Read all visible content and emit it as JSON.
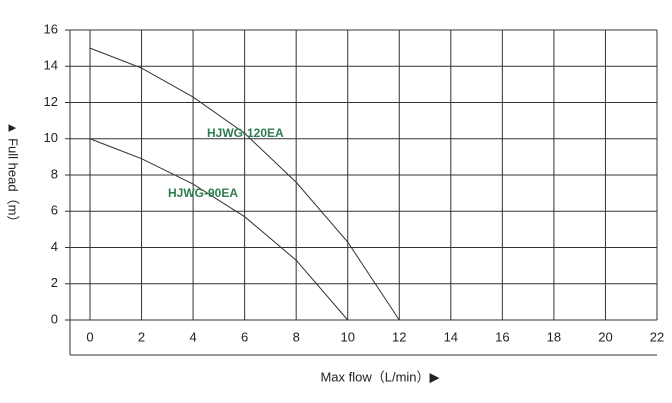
{
  "chart_data": {
    "type": "line",
    "x_label": "Max flow（L/min）▶",
    "y_label": "▲ Full head（m）",
    "x": [
      0,
      2,
      4,
      6,
      8,
      10,
      12
    ],
    "series": [
      {
        "name": "HJWG-120EA",
        "color": "#333333",
        "values": [
          15,
          13.9,
          12.3,
          10.3,
          7.6,
          4.3,
          0
        ]
      },
      {
        "name": "HJWG-90EA",
        "color": "#333333",
        "values": [
          10,
          8.9,
          7.5,
          5.7,
          3.3,
          0,
          null
        ]
      }
    ],
    "xlim": [
      0,
      22
    ],
    "ylim": [
      0,
      16
    ],
    "xticks": [
      0,
      2,
      4,
      6,
      8,
      10,
      12,
      14,
      16,
      18,
      20,
      22
    ],
    "yticks": [
      0,
      2,
      4,
      6,
      8,
      10,
      12,
      14,
      16
    ],
    "grid": true
  }
}
